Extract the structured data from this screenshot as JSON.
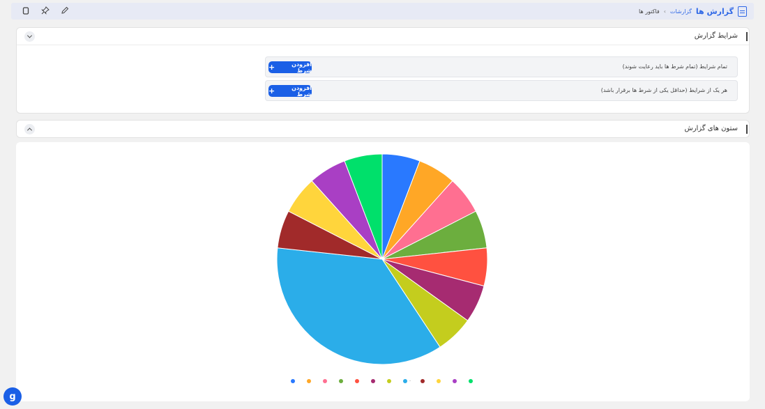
{
  "header": {
    "title": "گزارش ها",
    "breadcrumb": [
      "گزارشات",
      "فاکتور ها"
    ],
    "breadcrumb_sep": "›",
    "icons": [
      "copy-icon",
      "pin-icon",
      "edit-icon"
    ]
  },
  "conditions": {
    "title": "شرایط گزارش",
    "rows": [
      {
        "text": "تمام شرایط (تمام شرط ها باید رعایت شوند)",
        "button": "افزودن شرط"
      },
      {
        "text": "هر یک از شرایط (حداقل یکی از شرط ها برقرار باشد)",
        "button": "افزودن شرط"
      }
    ]
  },
  "columns": {
    "title": "ستون های گزارش"
  },
  "fab": {
    "label": "g"
  },
  "chart_data": {
    "type": "pie",
    "title": "",
    "legend_position": "bottom",
    "slices": [
      {
        "label": "",
        "value": 5.5,
        "color": "#2979ff"
      },
      {
        "label": "",
        "value": 5.5,
        "color": "#ffa726"
      },
      {
        "label": "",
        "value": 5.5,
        "color": "#ff6f91"
      },
      {
        "label": "",
        "value": 5.5,
        "color": "#6cae3e"
      },
      {
        "label": "",
        "value": 5.5,
        "color": "#ff5140"
      },
      {
        "label": "",
        "value": 5.5,
        "color": "#a62b71"
      },
      {
        "label": "",
        "value": 5.5,
        "color": "#c4cd1e"
      },
      {
        "label": "-",
        "value": 34,
        "color": "#2bade9"
      },
      {
        "label": "",
        "value": 5.5,
        "color": "#a12a2a"
      },
      {
        "label": "",
        "value": 5.5,
        "color": "#ffd53c"
      },
      {
        "label": "",
        "value": 5.5,
        "color": "#a93fc4"
      },
      {
        "label": "",
        "value": 5.5,
        "color": "#00e06b"
      }
    ]
  }
}
